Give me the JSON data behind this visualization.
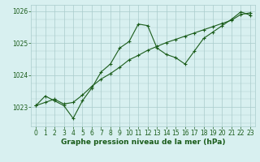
{
  "line1_x": [
    0,
    1,
    2,
    3,
    4,
    5,
    6,
    7,
    8,
    9,
    10,
    11,
    12,
    13,
    14,
    15,
    16,
    17,
    18,
    19,
    20,
    21,
    22,
    23
  ],
  "line1_y": [
    1023.05,
    1023.35,
    1023.2,
    1023.05,
    1022.65,
    1023.2,
    1023.6,
    1024.1,
    1024.35,
    1024.85,
    1025.05,
    1025.6,
    1025.55,
    1024.85,
    1024.65,
    1024.55,
    1024.35,
    1024.75,
    1025.15,
    1025.35,
    1025.55,
    1025.75,
    1025.98,
    1025.88
  ],
  "line2_x": [
    0,
    1,
    2,
    3,
    4,
    5,
    6,
    7,
    8,
    9,
    10,
    11,
    12,
    13,
    14,
    15,
    16,
    17,
    18,
    19,
    20,
    21,
    22,
    23
  ],
  "line2_y": [
    1023.05,
    1023.15,
    1023.25,
    1023.1,
    1023.15,
    1023.38,
    1023.65,
    1023.88,
    1024.05,
    1024.25,
    1024.48,
    1024.62,
    1024.78,
    1024.9,
    1025.02,
    1025.12,
    1025.22,
    1025.32,
    1025.42,
    1025.52,
    1025.62,
    1025.72,
    1025.9,
    1025.95
  ],
  "line_color": "#1a5c1a",
  "bg_color": "#d8f0f0",
  "grid_color": "#aacccc",
  "xlabel": "Graphe pression niveau de la mer (hPa)",
  "ylim": [
    1022.4,
    1026.2
  ],
  "xlim": [
    -0.5,
    23.5
  ],
  "yticks": [
    1023,
    1024,
    1025,
    1026
  ],
  "xticks": [
    0,
    1,
    2,
    3,
    4,
    5,
    6,
    7,
    8,
    9,
    10,
    11,
    12,
    13,
    14,
    15,
    16,
    17,
    18,
    19,
    20,
    21,
    22,
    23
  ],
  "title_fontsize": 6.5,
  "tick_fontsize": 5.5
}
